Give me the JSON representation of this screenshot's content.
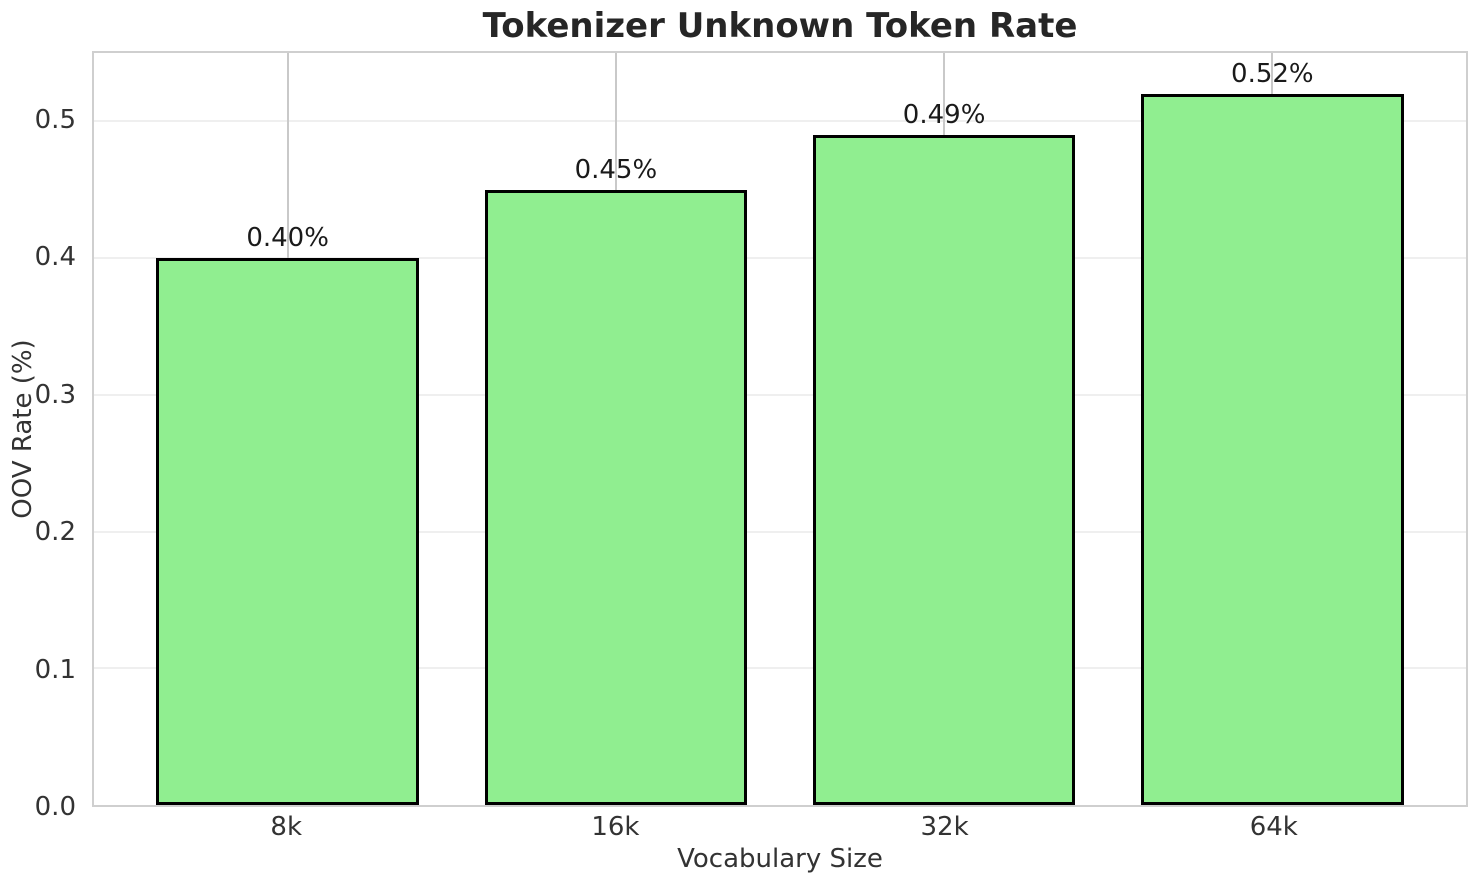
{
  "chart_data": {
    "type": "bar",
    "title": "Tokenizer Unknown Token Rate",
    "xlabel": "Vocabulary Size",
    "ylabel": "OOV Rate (%)",
    "categories": [
      "8k",
      "16k",
      "32k",
      "64k"
    ],
    "values": [
      0.4,
      0.45,
      0.49,
      0.52
    ],
    "bar_labels": [
      "0.40%",
      "0.45%",
      "0.49%",
      "0.52%"
    ],
    "yticks": [
      0.0,
      0.1,
      0.2,
      0.3,
      0.4,
      0.5
    ],
    "ytick_labels": [
      "0.0",
      "0.1",
      "0.2",
      "0.3",
      "0.4",
      "0.5"
    ],
    "ylim": [
      0,
      0.55
    ],
    "grid": true,
    "legend": null,
    "colors": {
      "bar_fill": "#90EE90",
      "bar_edge": "#000000",
      "spine": "#cfcfcf",
      "grid_horizontal": "#efefef",
      "grid_vertical": "#c9c9c9",
      "title_text": "#262626",
      "tick_text": "#333333",
      "value_label_text": "#1a1a1a",
      "background": "#ffffff"
    }
  }
}
